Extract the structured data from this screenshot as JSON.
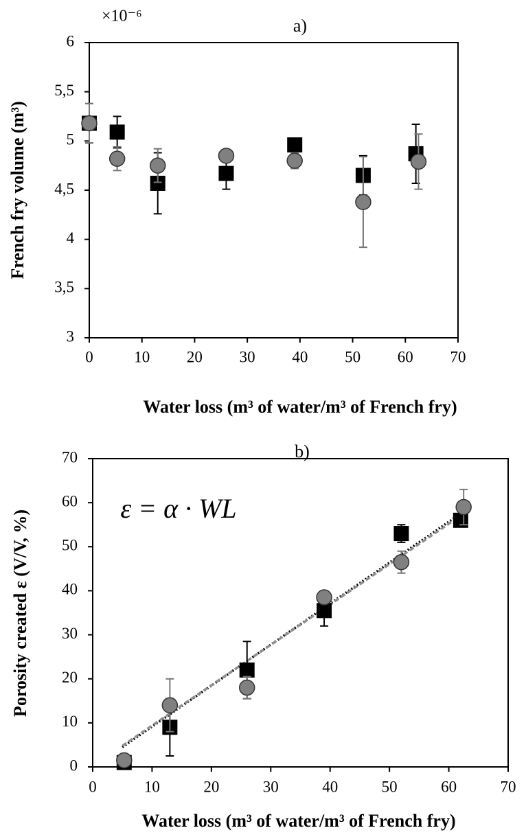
{
  "chart_data": [
    {
      "type": "scatter",
      "title": "a)",
      "multiplier": "×10⁻⁶",
      "ylabel": "French fry volume (m³)",
      "xlabel": "Water loss (m³ of water/m³ of French fry)",
      "xlim": [
        0,
        70
      ],
      "xticks": [
        0,
        10,
        20,
        30,
        40,
        50,
        60,
        70
      ],
      "ylim": [
        3,
        6
      ],
      "yticks": [
        3,
        {
          "value": 3.5,
          "label": "3,5"
        },
        4,
        {
          "value": 4.5,
          "label": "4,5"
        },
        5,
        {
          "value": 5.5,
          "label": "5,5"
        },
        6
      ],
      "series": [
        {
          "marker": "square",
          "color": "#000000",
          "x": [
            0,
            5.3,
            13,
            26,
            39,
            52,
            62
          ],
          "values": [
            5.18,
            5.09,
            4.57,
            4.67,
            4.96,
            4.65,
            4.87
          ],
          "errors": [
            0.2,
            0.16,
            0.31,
            0.16,
            0.05,
            0.2,
            0.3
          ]
        },
        {
          "marker": "circle",
          "color": "#808080",
          "x": [
            0,
            5.3,
            13,
            26,
            39,
            52,
            62.5
          ],
          "values": [
            5.18,
            4.82,
            4.75,
            4.85,
            4.8,
            4.38,
            4.79
          ],
          "errors": [
            0.2,
            0.12,
            0.17,
            0.05,
            0.08,
            0.46,
            0.28
          ]
        }
      ]
    },
    {
      "type": "scatter",
      "title": "b)",
      "annotation": "ε = α · WL",
      "ylabel": "Porosity created ε (V/V, %)",
      "xlabel": "Water loss (m³ of water/m³ of French fry)",
      "xlim": [
        0,
        70
      ],
      "xticks": [
        0,
        10,
        20,
        30,
        40,
        50,
        60,
        70
      ],
      "ylim": [
        0,
        70
      ],
      "yticks": [
        0,
        10,
        20,
        30,
        40,
        50,
        60,
        70
      ],
      "series": [
        {
          "marker": "square",
          "color": "#000000",
          "x": [
            5.3,
            13,
            26,
            39,
            52,
            62
          ],
          "values": [
            1,
            9,
            22,
            35.5,
            53,
            56
          ],
          "errors": [
            1,
            6.5,
            6.5,
            3.5,
            2,
            1
          ]
        },
        {
          "marker": "circle",
          "color": "#808080",
          "x": [
            5.3,
            13,
            26,
            39,
            52,
            62.5
          ],
          "values": [
            1.5,
            14,
            18,
            38.5,
            46.5,
            59
          ],
          "errors": [
            0.5,
            6,
            2.5,
            1,
            2.5,
            4
          ]
        }
      ],
      "trend_lines": [
        {
          "color": "#000000",
          "dash": "2 3",
          "x": [
            5,
            62.5
          ],
          "values": [
            4.5,
            58
          ]
        },
        {
          "color": "#909090",
          "dash": "7 4",
          "x": [
            5,
            62.5
          ],
          "values": [
            4.8,
            57.5
          ]
        }
      ]
    }
  ]
}
